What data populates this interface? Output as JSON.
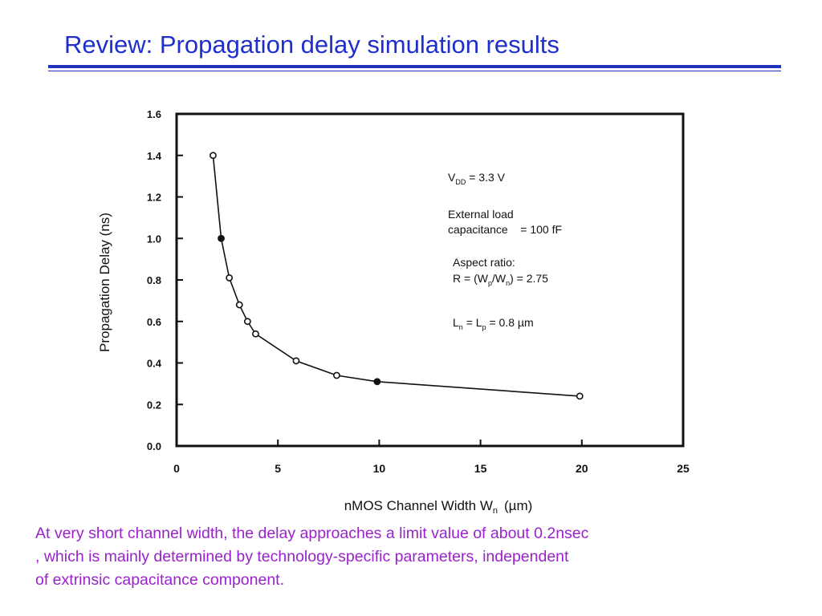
{
  "slide": {
    "title": "Review: Propagation delay simulation results",
    "colors": {
      "title": "#1f2fcc",
      "rule": "#2233bb",
      "caption": "#9a22cc"
    },
    "caption_lines": [
      "At very short channel width, the delay approaches a limit value of about 0.2nsec",
      ", which is mainly determined by technology-specific parameters, independent",
      "of extrinsic capacitance component."
    ]
  },
  "chart_data": {
    "type": "line",
    "xlabel": "nMOS Channel Width W",
    "xlabel_subscript": "n",
    "xlabel_unit": "(µm)",
    "ylabel": "Propagation Delay  (ns)",
    "xlim": [
      0,
      25
    ],
    "ylim": [
      0,
      1.6
    ],
    "x_ticks": [
      0,
      5,
      10,
      15,
      20,
      25
    ],
    "x_tick_labels": [
      "0",
      "5",
      "10",
      "15",
      "20",
      "25"
    ],
    "y_ticks": [
      0,
      0.2,
      0.4,
      0.6,
      0.8,
      1.0,
      1.2,
      1.4,
      1.6
    ],
    "y_tick_labels": [
      "0.0",
      "0.2",
      "0.4",
      "0.6",
      "0.8",
      "1.0",
      "1.2",
      "1.4",
      "1.6"
    ],
    "grid": false,
    "series": [
      {
        "x": [
          1.8,
          2.2,
          2.6,
          3.1,
          3.5,
          3.9,
          5.9,
          7.9,
          9.9,
          19.9
        ],
        "y": [
          1.4,
          1.0,
          0.81,
          0.68,
          0.6,
          0.54,
          0.41,
          0.34,
          0.31,
          0.24
        ]
      }
    ],
    "annotations": {
      "vcc": {
        "main": "V",
        "sub": "DD",
        "rest": " = 3.3 V"
      },
      "load_line1": "External load",
      "load_line2": "capacitance    = 100 fF",
      "ratio_line1": "Aspect ratio:",
      "ratio_line2": {
        "a": "R = (W",
        "sub1": "p",
        "b": "/W",
        "sub2": "n",
        "c": ") = 2.75"
      },
      "length": {
        "a": "L",
        "sub1": "n",
        "b": " = L",
        "sub2": "p",
        "c": " = 0.8 µm"
      }
    }
  }
}
